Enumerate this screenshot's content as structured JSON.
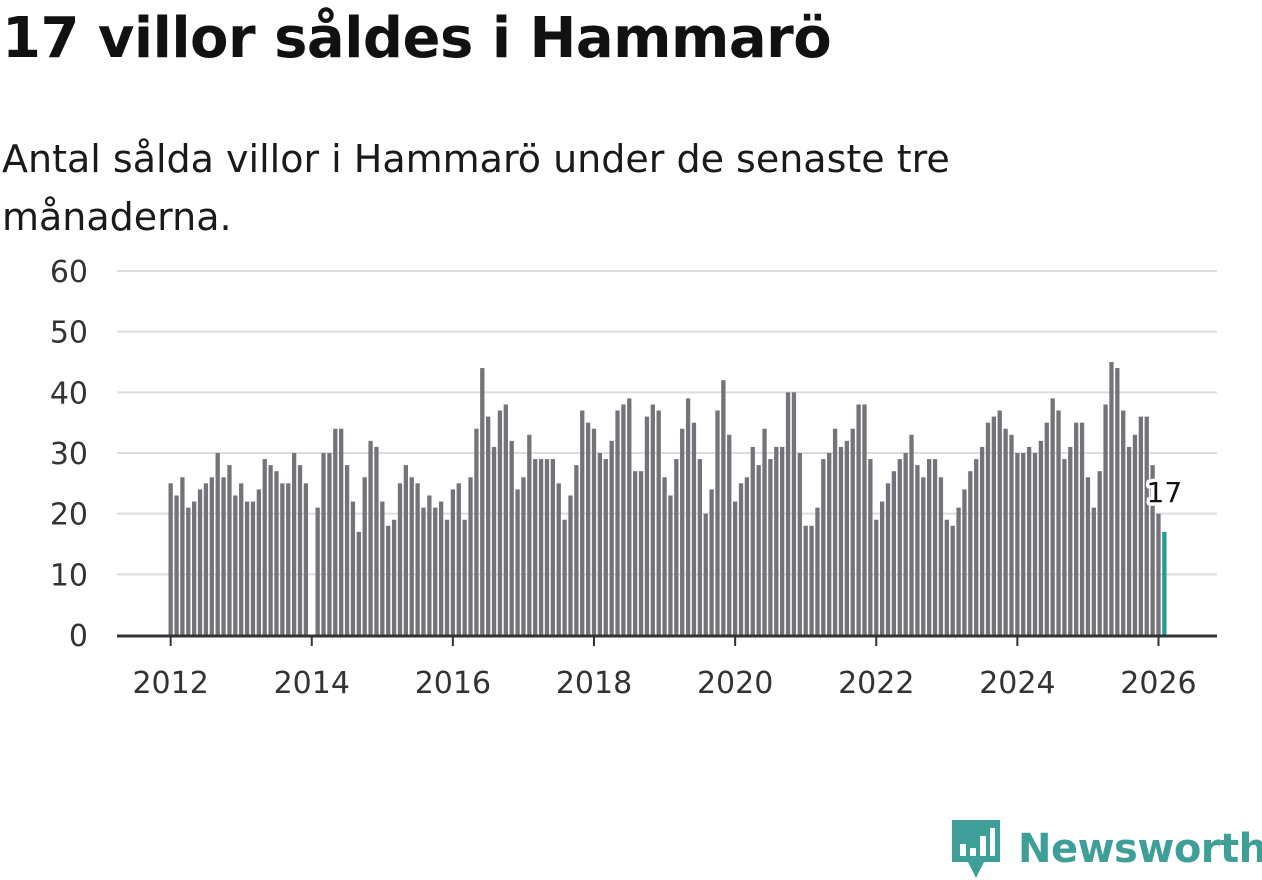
{
  "header": {
    "title": "17 villor såldes i Hammarö",
    "subtitle": "Antal sålda villor i Hammarö under de senaste tre månaderna."
  },
  "brand": {
    "name": "Newsworthy",
    "logo_icon": "bar-chart-badge-icon"
  },
  "colors": {
    "bar": "#74737a",
    "highlight": "#1f9e96",
    "grid": "#dddddd",
    "axis": "#333333",
    "brand": "#3e9e98"
  },
  "chart_data": {
    "type": "bar",
    "title": "17 villor såldes i Hammarö",
    "subtitle": "Antal sålda villor i Hammarö under de senaste tre månaderna.",
    "xlabel": "",
    "ylabel": "",
    "ylim": [
      0,
      60
    ],
    "yticks": [
      "0",
      "10",
      "20",
      "30",
      "40",
      "50",
      "60"
    ],
    "xticks": [
      "2012",
      "2014",
      "2016",
      "2018",
      "2020",
      "2022",
      "2024",
      "2026"
    ],
    "start": "2012-01",
    "end": "2026-01",
    "highlight_label": "17",
    "values": [
      25,
      23,
      26,
      21,
      22,
      24,
      25,
      26,
      30,
      26,
      28,
      23,
      25,
      22,
      22,
      24,
      29,
      28,
      27,
      25,
      25,
      30,
      28,
      25,
      null,
      21,
      30,
      30,
      34,
      34,
      28,
      22,
      17,
      26,
      32,
      31,
      22,
      18,
      19,
      25,
      28,
      26,
      25,
      21,
      23,
      21,
      22,
      19,
      24,
      25,
      19,
      26,
      34,
      44,
      36,
      31,
      37,
      38,
      32,
      24,
      26,
      33,
      29,
      29,
      29,
      29,
      25,
      19,
      23,
      28,
      37,
      35,
      34,
      30,
      29,
      32,
      37,
      38,
      39,
      27,
      27,
      36,
      38,
      37,
      26,
      23,
      29,
      34,
      39,
      35,
      29,
      20,
      24,
      37,
      42,
      33,
      22,
      25,
      26,
      31,
      28,
      34,
      29,
      31,
      31,
      40,
      40,
      30,
      18,
      18,
      21,
      29,
      30,
      34,
      31,
      32,
      34,
      38,
      38,
      29,
      19,
      22,
      25,
      27,
      29,
      30,
      33,
      28,
      26,
      29,
      29,
      26,
      19,
      18,
      21,
      24,
      27,
      29,
      31,
      35,
      36,
      37,
      34,
      33,
      30,
      30,
      31,
      30,
      32,
      35,
      39,
      37,
      29,
      31,
      35,
      35,
      26,
      21,
      27,
      38,
      45,
      44,
      37,
      31,
      33,
      36,
      36,
      28,
      20,
      17
    ]
  }
}
